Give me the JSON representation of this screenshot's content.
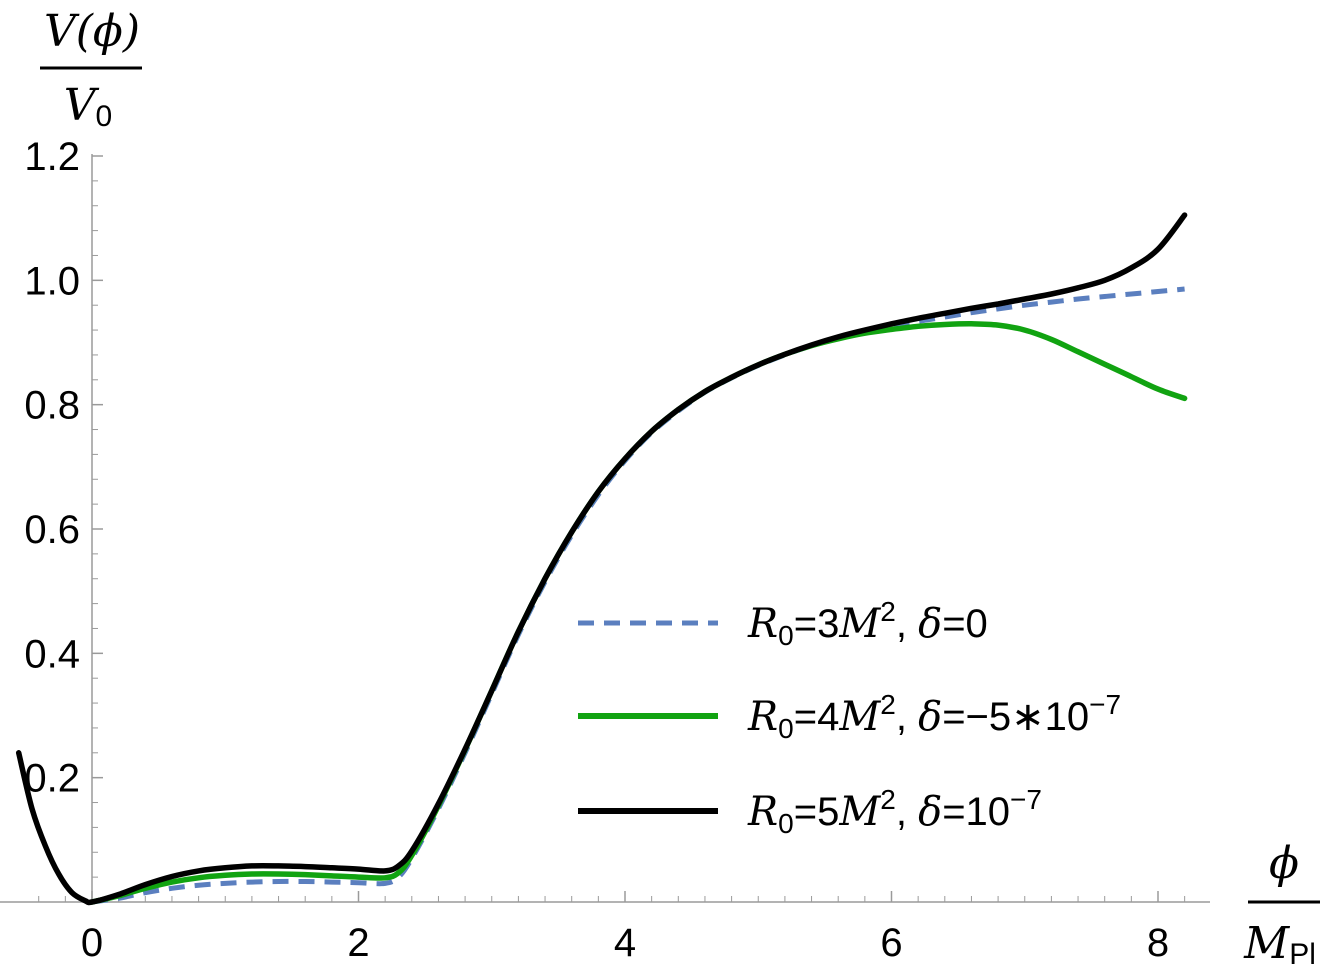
{
  "chart_data": {
    "type": "line",
    "ylabel": {
      "numerator": "V(ϕ)",
      "denominator": "V",
      "denominator_sub": "0"
    },
    "xlabel": {
      "numerator": "ϕ",
      "denominator": "M",
      "denominator_sub": "Pl"
    },
    "xlim": [
      -0.55,
      8.25
    ],
    "ylim": [
      -0.0,
      1.2
    ],
    "xticks": [
      "0",
      "2",
      "4",
      "6",
      "8"
    ],
    "xtick_values": [
      0,
      2,
      4,
      6,
      8
    ],
    "yticks": [
      "0.2",
      "0.4",
      "0.6",
      "0.8",
      "1.0",
      "1.2"
    ],
    "ytick_values": [
      0.2,
      0.4,
      0.6,
      0.8,
      1.0,
      1.2
    ],
    "legend_position": "center-right",
    "series": [
      {
        "name": "R0=3M2, δ=0",
        "legend": {
          "R_sub": "0",
          "eq1": "=3",
          "M": "M",
          "sup": "2",
          "sep": ", ",
          "delta": "δ",
          "eq2": "=0",
          "sup2": ""
        },
        "color": "#5b7fbf",
        "dash": true,
        "x": [
          0.0,
          0.2,
          0.4,
          0.6,
          0.8,
          1.0,
          1.2,
          1.4,
          1.6,
          1.8,
          2.0,
          2.2,
          2.3,
          2.4,
          2.6,
          2.8,
          3.0,
          3.2,
          3.4,
          3.6,
          3.8,
          4.0,
          4.2,
          4.4,
          4.6,
          4.8,
          5.0,
          5.2,
          5.4,
          5.6,
          5.8,
          6.0,
          6.2,
          6.4,
          6.6,
          6.8,
          7.0,
          7.2,
          7.4,
          7.6,
          7.8,
          8.0,
          8.2
        ],
        "y": [
          0.0,
          0.006,
          0.015,
          0.022,
          0.027,
          0.03,
          0.032,
          0.033,
          0.033,
          0.032,
          0.031,
          0.03,
          0.04,
          0.07,
          0.15,
          0.24,
          0.335,
          0.43,
          0.515,
          0.59,
          0.655,
          0.71,
          0.755,
          0.79,
          0.82,
          0.843,
          0.863,
          0.88,
          0.895,
          0.907,
          0.917,
          0.926,
          0.934,
          0.941,
          0.948,
          0.954,
          0.96,
          0.965,
          0.97,
          0.974,
          0.978,
          0.982,
          0.986
        ]
      },
      {
        "name": "R0=4M2, δ=−5*10−7",
        "legend": {
          "R_sub": "0",
          "eq1": "=4",
          "M": "M",
          "sup": "2",
          "sep": ", ",
          "delta": "δ",
          "eq2": "=−5∗10",
          "sup2": "−7"
        },
        "color": "#11a311",
        "dash": false,
        "x": [
          0.0,
          0.2,
          0.4,
          0.6,
          0.8,
          1.0,
          1.2,
          1.4,
          1.6,
          1.8,
          2.0,
          2.2,
          2.3,
          2.4,
          2.6,
          2.8,
          3.0,
          3.2,
          3.4,
          3.6,
          3.8,
          4.0,
          4.2,
          4.4,
          4.6,
          4.8,
          5.0,
          5.2,
          5.4,
          5.6,
          5.8,
          6.0,
          6.2,
          6.4,
          6.6,
          6.8,
          7.0,
          7.2,
          7.4,
          7.6,
          7.8,
          8.0,
          8.2
        ],
        "y": [
          0.0,
          0.01,
          0.022,
          0.032,
          0.039,
          0.043,
          0.045,
          0.045,
          0.044,
          0.042,
          0.04,
          0.039,
          0.047,
          0.075,
          0.155,
          0.245,
          0.34,
          0.435,
          0.52,
          0.595,
          0.66,
          0.713,
          0.757,
          0.792,
          0.821,
          0.844,
          0.864,
          0.881,
          0.895,
          0.906,
          0.915,
          0.921,
          0.926,
          0.929,
          0.93,
          0.928,
          0.92,
          0.905,
          0.885,
          0.865,
          0.845,
          0.825,
          0.81
        ]
      },
      {
        "name": "R0=5M2, δ=10−7",
        "legend": {
          "R_sub": "0",
          "eq1": "=5",
          "M": "M",
          "sup": "2",
          "sep": ", ",
          "delta": "δ",
          "eq2": "=10",
          "sup2": "−7"
        },
        "color": "#000000",
        "dash": false,
        "x": [
          -0.55,
          -0.45,
          -0.35,
          -0.25,
          -0.15,
          -0.05,
          0.0,
          0.2,
          0.4,
          0.6,
          0.8,
          1.0,
          1.2,
          1.4,
          1.6,
          1.8,
          2.0,
          2.2,
          2.3,
          2.4,
          2.6,
          2.8,
          3.0,
          3.2,
          3.4,
          3.6,
          3.8,
          4.0,
          4.2,
          4.4,
          4.6,
          4.8,
          5.0,
          5.2,
          5.4,
          5.6,
          5.8,
          6.0,
          6.2,
          6.4,
          6.6,
          6.8,
          7.0,
          7.2,
          7.4,
          7.6,
          7.8,
          8.0,
          8.2
        ],
        "y": [
          0.24,
          0.15,
          0.09,
          0.045,
          0.015,
          0.002,
          0.0,
          0.012,
          0.028,
          0.041,
          0.05,
          0.055,
          0.058,
          0.058,
          0.057,
          0.055,
          0.053,
          0.05,
          0.058,
          0.082,
          0.158,
          0.246,
          0.34,
          0.435,
          0.52,
          0.595,
          0.66,
          0.713,
          0.757,
          0.792,
          0.821,
          0.844,
          0.864,
          0.881,
          0.896,
          0.909,
          0.92,
          0.93,
          0.939,
          0.947,
          0.955,
          0.962,
          0.97,
          0.978,
          0.988,
          1.0,
          1.02,
          1.05,
          1.105
        ]
      }
    ]
  }
}
